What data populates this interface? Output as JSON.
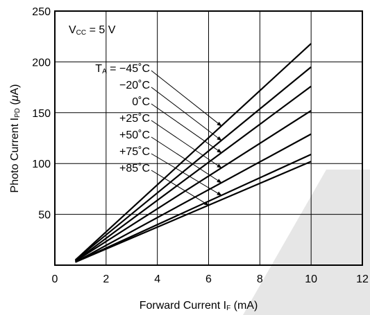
{
  "chart_data": {
    "type": "line",
    "title": "",
    "xlabel": {
      "main": "Forward Current  I",
      "sub": "F",
      "unit": " (mA)"
    },
    "ylabel": {
      "main": "Photo Current  I",
      "sub": "PD",
      "unit_open": " (",
      "unit_mu": "μ",
      "unit_close": "A)"
    },
    "xlim": [
      0,
      12
    ],
    "ylim": [
      0,
      250
    ],
    "x_ticks": [
      "0",
      "2",
      "4",
      "6",
      "8",
      "10",
      "12"
    ],
    "y_ticks": [
      "50",
      "100",
      "150",
      "200",
      "250"
    ],
    "grid": true,
    "annotation": {
      "main": "V",
      "sub": "CC",
      "rest": " = 5 V"
    },
    "series_prefix": {
      "main": "T",
      "sub": "A",
      "rest": " = "
    },
    "series": [
      {
        "name": "−45˚C",
        "label": "−45˚C",
        "x": [
          0.8,
          10
        ],
        "y": [
          5,
          218
        ]
      },
      {
        "name": "−20˚C",
        "label": "−20˚C",
        "x": [
          0.8,
          10
        ],
        "y": [
          5,
          195
        ]
      },
      {
        "name": "0˚C",
        "label": "0˚C",
        "x": [
          0.8,
          10
        ],
        "y": [
          4,
          176
        ]
      },
      {
        "name": "+25˚C",
        "label": "+25˚C",
        "x": [
          0.8,
          10
        ],
        "y": [
          4,
          152
        ]
      },
      {
        "name": "+50˚C",
        "label": "+50˚C",
        "x": [
          0.8,
          10
        ],
        "y": [
          3,
          129
        ]
      },
      {
        "name": "+75˚C",
        "label": "+75˚C",
        "x": [
          0.8,
          10
        ],
        "y": [
          3,
          109
        ]
      },
      {
        "name": "+85˚C",
        "label": "+85˚C",
        "x": [
          0.8,
          10
        ],
        "y": [
          3,
          102
        ]
      }
    ],
    "pointers": [
      {
        "series": 0,
        "at_x": 6.5
      },
      {
        "series": 1,
        "at_x": 6.5
      },
      {
        "series": 2,
        "at_x": 6.5
      },
      {
        "series": 3,
        "at_x": 6.5
      },
      {
        "series": 4,
        "at_x": 6.5
      },
      {
        "series": 5,
        "at_x": 6.5
      },
      {
        "series": 6,
        "at_x": 6.0
      }
    ],
    "colors": {
      "line": "#000000",
      "grid": "#000000",
      "watermark": "#e6e6e6"
    }
  }
}
